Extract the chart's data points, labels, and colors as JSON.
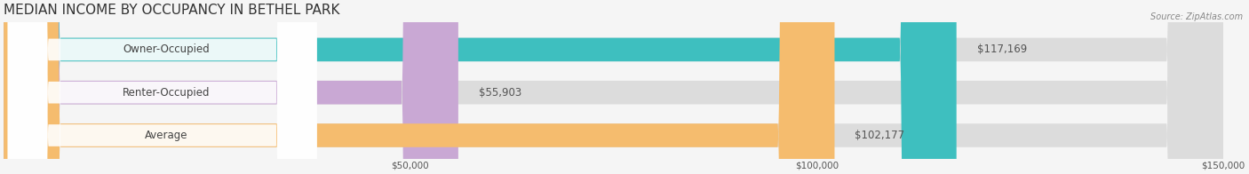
{
  "title": "MEDIAN INCOME BY OCCUPANCY IN BETHEL PARK",
  "source": "Source: ZipAtlas.com",
  "categories": [
    "Owner-Occupied",
    "Renter-Occupied",
    "Average"
  ],
  "values": [
    117169,
    55903,
    102177
  ],
  "bar_colors": [
    "#3ebfbf",
    "#c9a8d4",
    "#f5bc6e"
  ],
  "bar_bg_color": "#e8e8e8",
  "value_labels": [
    "$117,169",
    "$55,903",
    "$102,177"
  ],
  "xlim": [
    0,
    150000
  ],
  "xticks": [
    0,
    50000,
    100000,
    150000
  ],
  "xtick_labels": [
    "",
    "$50,000",
    "$100,000",
    "$150,000"
  ],
  "title_fontsize": 11,
  "label_fontsize": 8.5,
  "bar_height": 0.55,
  "background_color": "#f5f5f5",
  "bar_bg_alpha": 0.5,
  "grid_color": "#cccccc"
}
